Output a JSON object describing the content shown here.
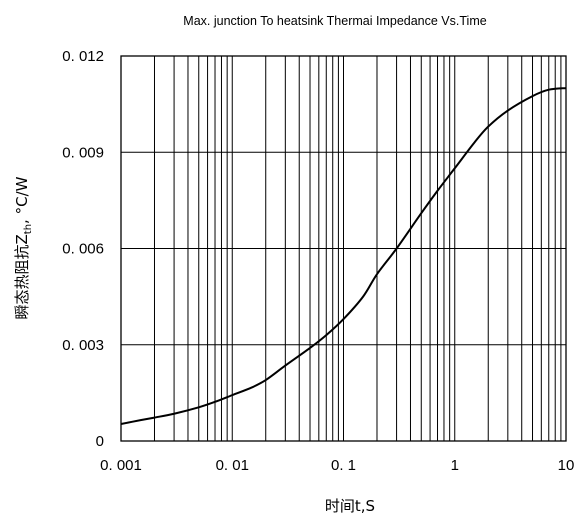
{
  "chart_data": {
    "type": "line",
    "title": "Max. junction To heatsink Thermai Impedance Vs.Time",
    "xlabel": "时间t,S",
    "ylabel_main": "瞬态热阻抗Z",
    "ylabel_sub": "th",
    "ylabel_unit": ", °C/W",
    "x_scale": "log",
    "xlim": [
      0.001,
      10
    ],
    "ylim": [
      0,
      0.012
    ],
    "x_ticks": [
      0.001,
      0.01,
      0.1,
      1,
      10
    ],
    "x_tick_labels": [
      "0. 001",
      "0. 01",
      "0. 1",
      "1",
      "10"
    ],
    "y_ticks": [
      0,
      0.003,
      0.006,
      0.009,
      0.012
    ],
    "y_tick_labels": [
      "0",
      "0. 003",
      "0. 006",
      "0. 009",
      "0. 012"
    ],
    "grid": true,
    "series": [
      {
        "color": "#000000",
        "x": [
          0.001,
          0.0015,
          0.002,
          0.003,
          0.005,
          0.007,
          0.01,
          0.015,
          0.02,
          0.03,
          0.05,
          0.07,
          0.1,
          0.15,
          0.2,
          0.3,
          0.5,
          0.7,
          1,
          1.5,
          2,
          3,
          5,
          7,
          10
        ],
        "y": [
          0.00053,
          0.00065,
          0.00073,
          0.00085,
          0.00105,
          0.00122,
          0.00143,
          0.00167,
          0.0019,
          0.00235,
          0.0029,
          0.0033,
          0.0038,
          0.0045,
          0.0052,
          0.006,
          0.0071,
          0.0078,
          0.0085,
          0.0093,
          0.0098,
          0.0103,
          0.01075,
          0.01095,
          0.011
        ]
      }
    ]
  }
}
